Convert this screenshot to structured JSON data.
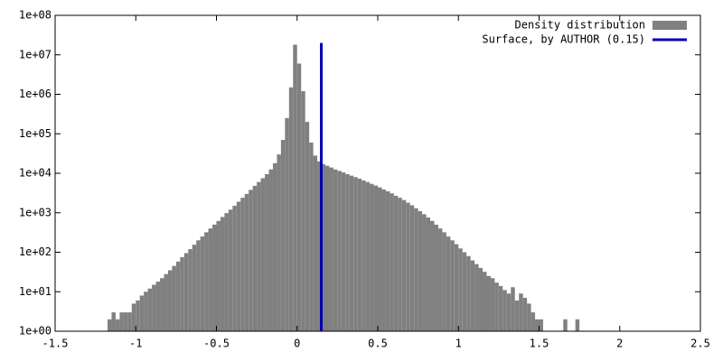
{
  "chart_data": {
    "type": "histogram",
    "bins": [
      -1.175,
      -1.15,
      -1.125,
      -1.1,
      -1.075,
      -1.05,
      -1.025,
      -1.0,
      -0.975,
      -0.95,
      -0.925,
      -0.9,
      -0.875,
      -0.85,
      -0.825,
      -0.8,
      -0.775,
      -0.75,
      -0.725,
      -0.7,
      -0.675,
      -0.65,
      -0.625,
      -0.6,
      -0.575,
      -0.55,
      -0.525,
      -0.5,
      -0.475,
      -0.45,
      -0.425,
      -0.4,
      -0.375,
      -0.35,
      -0.325,
      -0.3,
      -0.275,
      -0.25,
      -0.225,
      -0.2,
      -0.175,
      -0.15,
      -0.125,
      -0.1,
      -0.075,
      -0.05,
      -0.025,
      0,
      0.025,
      0.05,
      0.075,
      0.1,
      0.125,
      0.15,
      0.175,
      0.2,
      0.225,
      0.25,
      0.275,
      0.3,
      0.325,
      0.35,
      0.375,
      0.4,
      0.425,
      0.45,
      0.475,
      0.5,
      0.525,
      0.55,
      0.575,
      0.6,
      0.625,
      0.65,
      0.675,
      0.7,
      0.725,
      0.75,
      0.775,
      0.8,
      0.825,
      0.85,
      0.875,
      0.9,
      0.925,
      0.95,
      0.975,
      1.0,
      1.025,
      1.05,
      1.075,
      1.1,
      1.125,
      1.15,
      1.175,
      1.2,
      1.225,
      1.25,
      1.275,
      1.3,
      1.325,
      1.35,
      1.375,
      1.4,
      1.425,
      1.45,
      1.475,
      1.5,
      1.525,
      1.55,
      1.575,
      1.6,
      1.625,
      1.65,
      1.675,
      1.7,
      1.725,
      1.75
    ],
    "series": [
      {
        "name": "Density distribution",
        "color": "#808080",
        "values": [
          2,
          3,
          2,
          3,
          3,
          3,
          5,
          6,
          8,
          10,
          12,
          15,
          18,
          22,
          28,
          35,
          45,
          58,
          75,
          95,
          120,
          155,
          200,
          250,
          320,
          400,
          500,
          620,
          780,
          980,
          1200,
          1500,
          1900,
          2400,
          3000,
          3800,
          4800,
          6000,
          7500,
          9500,
          12500,
          18000,
          30000,
          70000,
          250000,
          1500000,
          18000000,
          6000000,
          1200000,
          200000,
          60000,
          28000,
          20000,
          17000,
          15500,
          14000,
          12500,
          11500,
          10500,
          9500,
          8700,
          8000,
          7300,
          6600,
          6000,
          5400,
          4900,
          4400,
          3900,
          3500,
          3100,
          2700,
          2400,
          2100,
          1800,
          1550,
          1300,
          1100,
          920,
          760,
          620,
          500,
          400,
          320,
          250,
          200,
          160,
          125,
          100,
          80,
          62,
          50,
          40,
          32,
          25,
          22,
          17,
          14,
          11,
          9,
          13,
          6,
          9,
          7,
          5,
          3,
          2,
          2,
          null,
          null,
          null,
          null,
          null,
          2,
          null,
          null,
          2
        ]
      }
    ],
    "lines": [
      {
        "name": "Surface, by AUTHOR (0.15)",
        "color": "#0000b0",
        "x": 0.15,
        "y": [
          1,
          20000000
        ]
      }
    ],
    "xlim": [
      -1.5,
      2.5
    ],
    "xticks": [
      -1.5,
      -1,
      -0.5,
      0,
      0.5,
      1,
      1.5,
      2,
      2.5
    ],
    "ylim": [
      1,
      100000000
    ],
    "yscale": "log",
    "yticks": [
      {
        "value": 1,
        "label": "1e+00"
      },
      {
        "value": 10,
        "label": "1e+01"
      },
      {
        "value": 100,
        "label": "1e+02"
      },
      {
        "value": 1000,
        "label": "1e+03"
      },
      {
        "value": 10000,
        "label": "1e+04"
      },
      {
        "value": 100000,
        "label": "1e+05"
      },
      {
        "value": 1000000,
        "label": "1e+06"
      },
      {
        "value": 10000000,
        "label": "1e+07"
      },
      {
        "value": 100000000,
        "label": "1e+08"
      }
    ],
    "legend": "top-right"
  }
}
